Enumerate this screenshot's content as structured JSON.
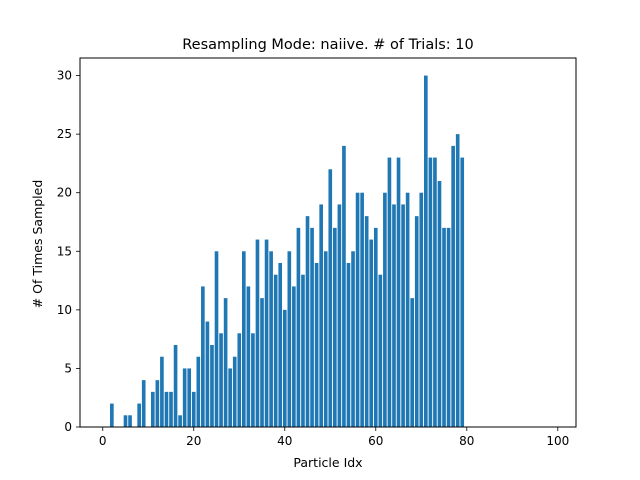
{
  "chart_data": {
    "type": "bar",
    "title": "Resampling Mode: naiive. # of Trials: 10",
    "xlabel": "Particle Idx",
    "ylabel": "# Of Times Sampled",
    "xlim": [
      -5,
      104
    ],
    "ylim": [
      0,
      31.5
    ],
    "xticks": [
      0,
      20,
      40,
      60,
      80,
      100
    ],
    "yticks": [
      0,
      5,
      10,
      15,
      20,
      25,
      30
    ],
    "grid": false,
    "bar_color": "#1f77b4",
    "x": [
      2,
      5,
      6,
      8,
      9,
      11,
      12,
      13,
      14,
      15,
      16,
      17,
      18,
      19,
      20,
      21,
      22,
      23,
      24,
      25,
      26,
      27,
      28,
      29,
      30,
      31,
      32,
      33,
      34,
      35,
      36,
      37,
      38,
      39,
      40,
      41,
      42,
      43,
      44,
      45,
      46,
      47,
      48,
      49,
      50,
      51,
      52,
      53,
      54,
      55,
      56,
      57,
      58,
      59,
      60,
      61,
      62,
      63,
      64,
      65,
      66,
      67,
      68,
      69,
      70,
      71,
      72,
      73,
      74,
      75,
      76,
      77,
      78,
      79
    ],
    "values": [
      2,
      1,
      1,
      2,
      4,
      3,
      4,
      6,
      3,
      3,
      7,
      1,
      5,
      5,
      3,
      6,
      12,
      9,
      7,
      15,
      8,
      11,
      5,
      6,
      8,
      15,
      12,
      8,
      16,
      11,
      16,
      15,
      13,
      14,
      10,
      15,
      12,
      17,
      13,
      18,
      17,
      14,
      19,
      15,
      22,
      17,
      19,
      24,
      14,
      15,
      20,
      20,
      18,
      16,
      17,
      13,
      20,
      23,
      19,
      23,
      19,
      20,
      11,
      18,
      20,
      30,
      23,
      23,
      21,
      17,
      17,
      24,
      25,
      23
    ]
  }
}
